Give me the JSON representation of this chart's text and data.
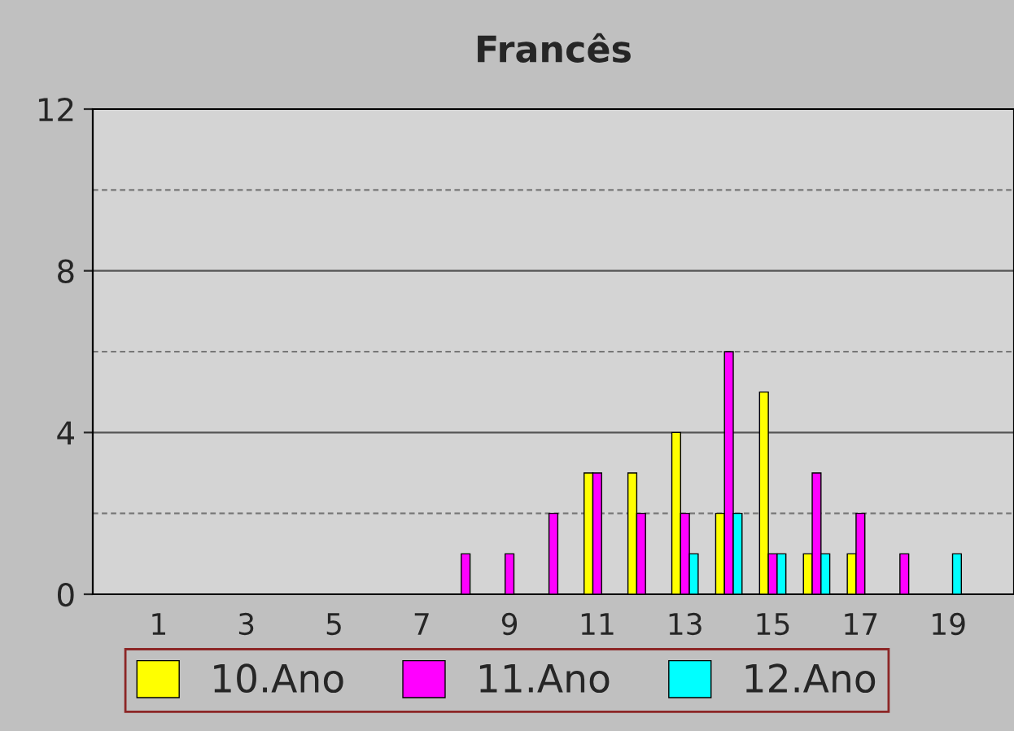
{
  "chart_data": {
    "type": "bar",
    "title": "Francês",
    "categories": [
      null,
      "1",
      null,
      "3",
      null,
      "5",
      null,
      "7",
      null,
      "9",
      null,
      "11",
      null,
      "13",
      null,
      "15",
      null,
      "17",
      null,
      "19",
      null
    ],
    "series": [
      {
        "name": "10.Ano",
        "color": "#ffff00",
        "values": [
          0,
          0,
          0,
          0,
          0,
          0,
          0,
          0,
          0,
          0,
          0,
          3,
          3,
          4,
          2,
          5,
          1,
          1,
          0,
          0,
          0
        ]
      },
      {
        "name": "11.Ano",
        "color": "#ff00ff",
        "values": [
          0,
          0,
          0,
          0,
          0,
          0,
          0,
          0,
          1,
          1,
          2,
          3,
          2,
          2,
          6,
          1,
          3,
          2,
          1,
          0,
          0
        ]
      },
      {
        "name": "12.Ano",
        "color": "#00ffff",
        "values": [
          0,
          0,
          0,
          0,
          0,
          0,
          0,
          0,
          0,
          0,
          0,
          0,
          0,
          1,
          2,
          1,
          1,
          0,
          0,
          1,
          0
        ]
      }
    ],
    "ylim": [
      0,
      12
    ],
    "yticks": [
      0,
      4,
      8,
      12
    ],
    "grid": "y",
    "legend": "bottom"
  }
}
